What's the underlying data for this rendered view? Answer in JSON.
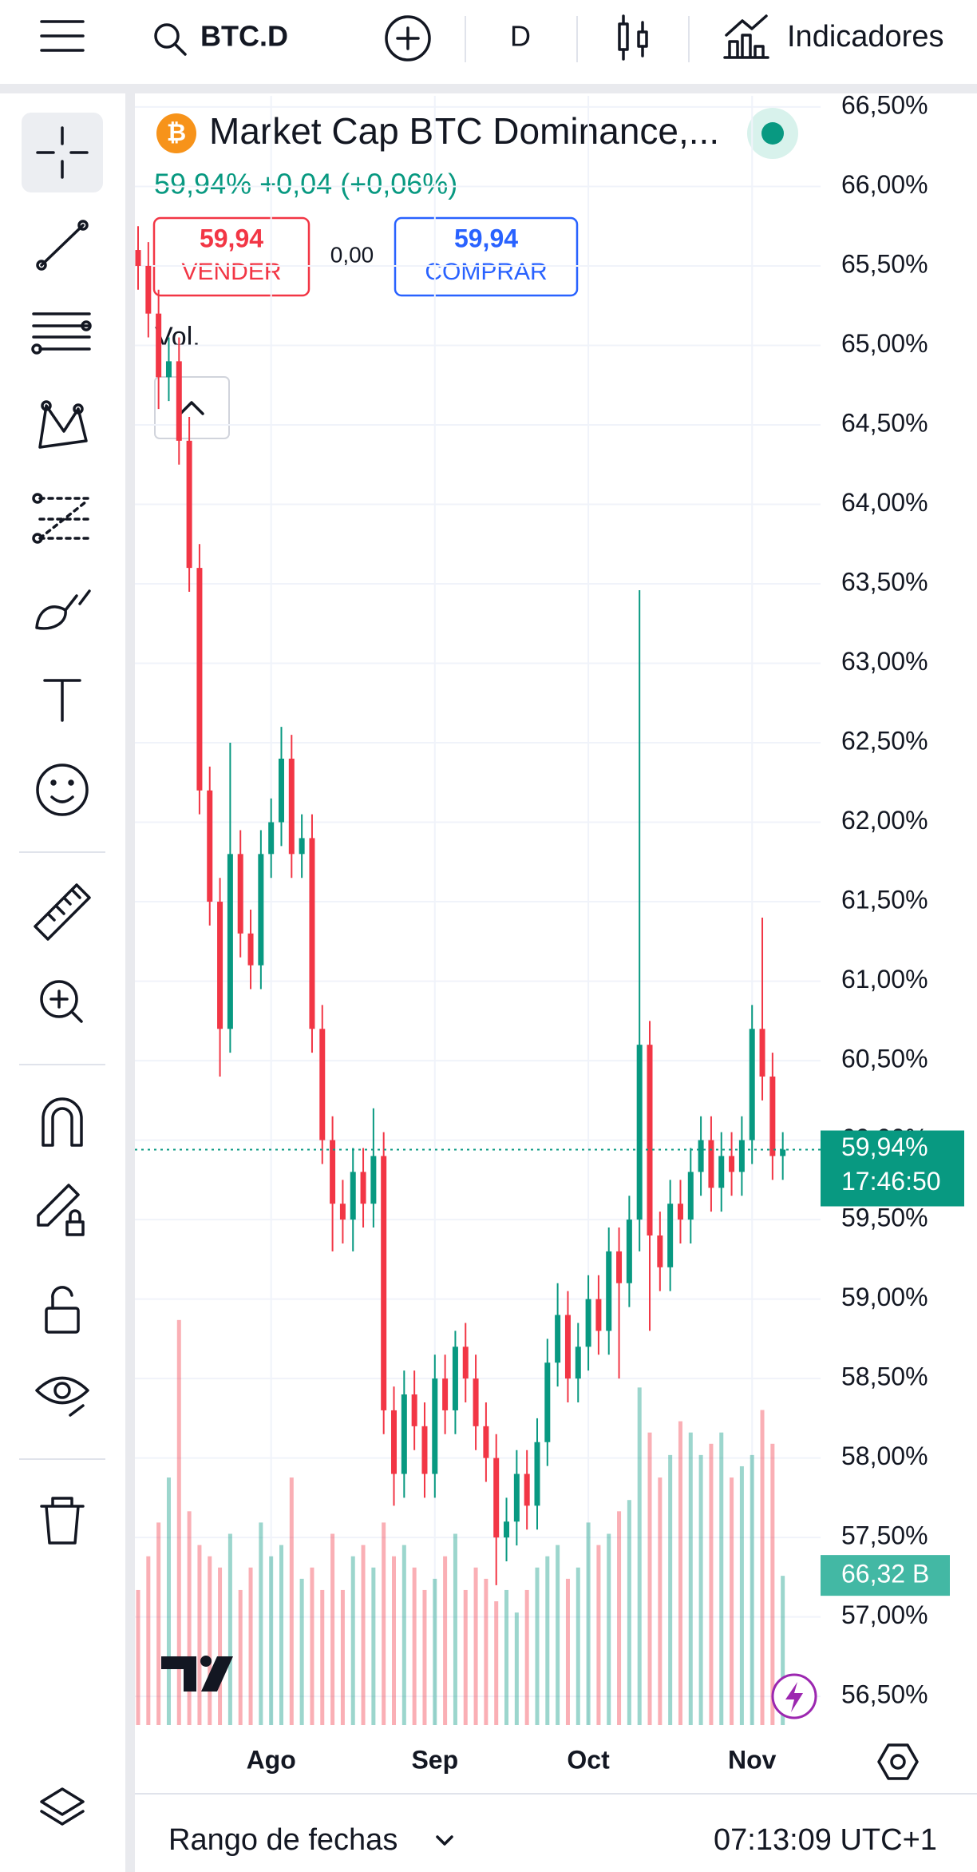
{
  "header": {
    "symbol": "BTC.D",
    "interval": "D",
    "indicators": "Indicadores"
  },
  "legend": {
    "title": "Market Cap BTC Dominance,...",
    "change": "59,94%  +0,04 (+0,06%)",
    "sell_price": "59,94",
    "sell": "VENDER",
    "spread": "0,00",
    "buy_price": "59,94",
    "buy": "COMPRAR",
    "volume": "Vol."
  },
  "footer": {
    "range": "Rango de fechas",
    "time": "07:13:09 UTC+1"
  },
  "chart_data": {
    "type": "candlestick",
    "categories": [
      null,
      null,
      null,
      null,
      null,
      null,
      null,
      null,
      null,
      null,
      null,
      null,
      null,
      "Ago",
      null,
      null,
      null,
      null,
      null,
      null,
      null,
      null,
      null,
      null,
      null,
      null,
      null,
      null,
      null,
      "Sep",
      null,
      null,
      null,
      null,
      null,
      null,
      null,
      null,
      null,
      null,
      null,
      null,
      null,
      null,
      "Oct",
      null,
      null,
      null,
      null,
      null,
      null,
      null,
      null,
      null,
      null,
      null,
      null,
      null,
      null,
      null,
      "Nov",
      null,
      null,
      null
    ],
    "open": [
      65.6,
      65.5,
      65.2,
      64.8,
      64.9,
      64.4,
      63.6,
      62.2,
      61.5,
      60.7,
      61.8,
      61.3,
      61.1,
      61.8,
      62.0,
      62.4,
      61.8,
      61.9,
      60.7,
      60.0,
      59.6,
      59.5,
      59.8,
      59.6,
      59.9,
      58.3,
      57.9,
      58.4,
      58.2,
      57.9,
      58.5,
      58.3,
      58.7,
      58.5,
      58.2,
      58.0,
      57.5,
      57.6,
      57.9,
      57.7,
      58.1,
      58.6,
      58.9,
      58.5,
      58.7,
      59.0,
      58.8,
      59.3,
      59.1,
      59.5,
      60.6,
      59.4,
      59.2,
      59.6,
      59.5,
      59.8,
      60.0,
      59.7,
      59.9,
      59.8,
      60.0,
      60.7,
      60.4,
      59.9
    ],
    "high": [
      65.75,
      65.65,
      65.35,
      65.05,
      65.05,
      64.55,
      63.75,
      62.35,
      61.65,
      62.5,
      61.95,
      61.45,
      61.95,
      62.15,
      62.6,
      62.55,
      62.05,
      62.05,
      60.85,
      60.15,
      59.75,
      59.95,
      59.95,
      60.2,
      60.05,
      58.45,
      58.55,
      58.55,
      58.35,
      58.65,
      58.65,
      58.8,
      58.85,
      58.65,
      58.35,
      58.15,
      57.75,
      58.05,
      58.05,
      58.25,
      58.75,
      59.1,
      59.05,
      58.85,
      59.15,
      59.15,
      59.45,
      59.45,
      59.65,
      63.46,
      60.75,
      59.55,
      59.75,
      59.75,
      59.95,
      60.15,
      60.15,
      60.05,
      60.05,
      60.15,
      60.85,
      61.4,
      60.55,
      60.05
    ],
    "low": [
      65.35,
      65.05,
      64.6,
      64.65,
      64.25,
      63.45,
      62.05,
      61.35,
      60.4,
      60.55,
      61.15,
      60.95,
      60.95,
      61.65,
      61.85,
      61.65,
      61.65,
      60.55,
      59.85,
      59.3,
      59.35,
      59.3,
      59.45,
      59.45,
      58.15,
      57.7,
      57.75,
      58.05,
      57.75,
      57.75,
      58.15,
      58.15,
      58.35,
      58.05,
      57.85,
      57.2,
      57.35,
      57.45,
      57.55,
      57.55,
      57.95,
      58.45,
      58.35,
      58.35,
      58.55,
      58.65,
      58.65,
      58.5,
      58.95,
      59.3,
      58.8,
      59.05,
      59.05,
      59.35,
      59.35,
      59.65,
      59.55,
      59.55,
      59.65,
      59.65,
      59.85,
      60.25,
      59.75,
      59.75
    ],
    "close": [
      65.5,
      65.2,
      64.8,
      64.9,
      64.4,
      63.6,
      62.2,
      61.5,
      60.7,
      61.8,
      61.3,
      61.1,
      61.8,
      62.0,
      62.4,
      61.8,
      61.9,
      60.7,
      60.0,
      59.6,
      59.5,
      59.8,
      59.6,
      59.9,
      58.3,
      57.9,
      58.4,
      58.2,
      57.9,
      58.5,
      58.3,
      58.7,
      58.5,
      58.2,
      58.0,
      57.5,
      57.6,
      57.9,
      57.7,
      58.1,
      58.6,
      58.9,
      58.5,
      58.7,
      59.0,
      58.8,
      59.3,
      59.1,
      59.5,
      60.6,
      59.4,
      59.2,
      59.6,
      59.5,
      59.8,
      60.0,
      59.7,
      59.9,
      59.8,
      60.0,
      60.7,
      60.4,
      59.9,
      59.94
    ],
    "up_color": "#089981",
    "down_color": "#f23645",
    "volume": {
      "values": [
        60,
        75,
        90,
        110,
        180,
        95,
        80,
        75,
        70,
        85,
        60,
        70,
        90,
        75,
        80,
        110,
        65,
        70,
        60,
        85,
        60,
        75,
        80,
        70,
        90,
        75,
        80,
        70,
        60,
        65,
        75,
        85,
        60,
        70,
        65,
        55,
        60,
        50,
        60,
        70,
        75,
        80,
        65,
        70,
        90,
        80,
        85,
        95,
        100,
        150,
        130,
        110,
        120,
        135,
        130,
        120,
        125,
        130,
        110,
        115,
        120,
        140,
        125,
        66.32
      ],
      "axis": "y2",
      "last_label": "66,32 B"
    },
    "last_price_label": "59,94%",
    "countdown": "17:46:50",
    "ylim": [
      56.32,
      66.57
    ],
    "yticks": [
      {
        "value": 56.5,
        "label": "56,50%"
      },
      {
        "value": 57,
        "label": "57,00%"
      },
      {
        "value": 57.5,
        "label": "57,50%"
      },
      {
        "value": 58,
        "label": "58,00%"
      },
      {
        "value": 58.5,
        "label": "58,50%"
      },
      {
        "value": 59,
        "label": "59,00%"
      },
      {
        "value": 59.5,
        "label": "59,50%"
      },
      {
        "value": 60,
        "label": "60,00%"
      },
      {
        "value": 60.5,
        "label": "60,50%"
      },
      {
        "value": 61,
        "label": "61,00%"
      },
      {
        "value": 61.5,
        "label": "61,50%"
      },
      {
        "value": 62,
        "label": "62,00%"
      },
      {
        "value": 62.5,
        "label": "62,50%"
      },
      {
        "value": 63,
        "label": "63,00%"
      },
      {
        "value": 63.5,
        "label": "63,50%"
      },
      {
        "value": 64,
        "label": "64,00%"
      },
      {
        "value": 64.5,
        "label": "64,50%"
      },
      {
        "value": 65,
        "label": "65,00%"
      },
      {
        "value": 65.5,
        "label": "65,50%"
      },
      {
        "value": 66,
        "label": "66,00%"
      },
      {
        "value": 66.5,
        "label": "66,50%"
      }
    ],
    "y2lim": [
      0,
      724
    ],
    "grid": true
  }
}
